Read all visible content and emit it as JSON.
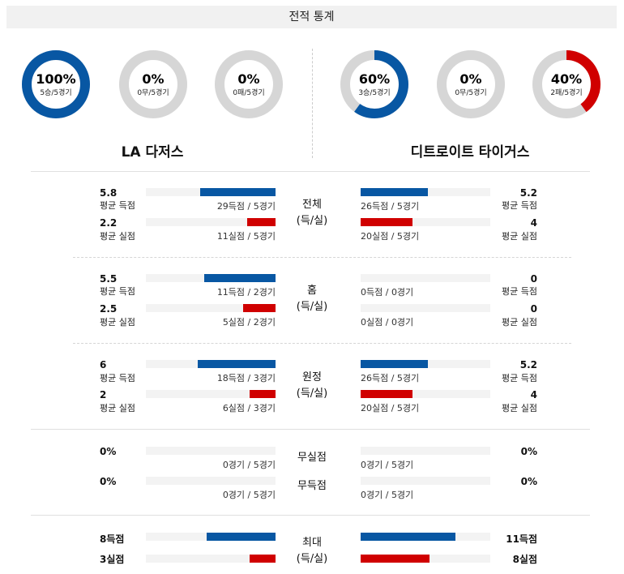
{
  "header": {
    "title": "전적 통계"
  },
  "colors": {
    "blue": "#0857a3",
    "red": "#d00000",
    "track": "#d6d6d6"
  },
  "teams": {
    "home": "LA 다저스",
    "away": "디트로이트 타이거스"
  },
  "donuts": [
    {
      "pct": "100%",
      "sub": "5승/5경기",
      "fraction": 1.0,
      "color": "blue"
    },
    {
      "pct": "0%",
      "sub": "0무/5경기",
      "fraction": 0.0,
      "color": "blue"
    },
    {
      "pct": "0%",
      "sub": "0패/5경기",
      "fraction": 0.0,
      "color": "red"
    },
    {
      "pct": "60%",
      "sub": "3승/5경기",
      "fraction": 0.6,
      "color": "blue"
    },
    {
      "pct": "0%",
      "sub": "0무/5경기",
      "fraction": 0.0,
      "color": "blue"
    },
    {
      "pct": "40%",
      "sub": "2패/5경기",
      "fraction": 0.4,
      "color": "red"
    }
  ],
  "sections": {
    "total": {
      "center": [
        "전체",
        "(득/실)"
      ],
      "rows": [
        {
          "lval": "5.8",
          "llab": "평균 득점",
          "lcap": "29득점 / 5경기",
          "lfrac": 0.58,
          "rval": "5.2",
          "rlab": "평균 득점",
          "rcap": "26득점 / 5경기",
          "rfrac": 0.52,
          "color": "blue"
        },
        {
          "lval": "2.2",
          "llab": "평균 실점",
          "lcap": "11실점 / 5경기",
          "lfrac": 0.22,
          "rval": "4",
          "rlab": "평균 실점",
          "rcap": "20실점 / 5경기",
          "rfrac": 0.4,
          "color": "red"
        }
      ]
    },
    "home": {
      "center": [
        "홈",
        "(득/실)"
      ],
      "rows": [
        {
          "lval": "5.5",
          "llab": "평균 득점",
          "lcap": "11득점 / 2경기",
          "lfrac": 0.55,
          "rval": "0",
          "rlab": "평균 득점",
          "rcap": "0득점 / 0경기",
          "rfrac": 0,
          "color": "blue"
        },
        {
          "lval": "2.5",
          "llab": "평균 실점",
          "lcap": "5실점 / 2경기",
          "lfrac": 0.25,
          "rval": "0",
          "rlab": "평균 실점",
          "rcap": "0실점 / 0경기",
          "rfrac": 0,
          "color": "red"
        }
      ]
    },
    "away": {
      "center": [
        "원정",
        "(득/실)"
      ],
      "rows": [
        {
          "lval": "6",
          "llab": "평균 득점",
          "lcap": "18득점 / 3경기",
          "lfrac": 0.6,
          "rval": "5.2",
          "rlab": "평균 득점",
          "rcap": "26득점 / 5경기",
          "rfrac": 0.52,
          "color": "blue"
        },
        {
          "lval": "2",
          "llab": "평균 실점",
          "lcap": "6실점 / 3경기",
          "lfrac": 0.2,
          "rval": "4",
          "rlab": "평균 실점",
          "rcap": "20실점 / 5경기",
          "rfrac": 0.4,
          "color": "red"
        }
      ]
    },
    "zero": {
      "rows": [
        {
          "center": "무실점",
          "lval": "0%",
          "lcap": "0경기 / 5경기",
          "rval": "0%",
          "rcap": "0경기 / 5경기"
        },
        {
          "center": "무득점",
          "lval": "0%",
          "lcap": "0경기 / 5경기",
          "rval": "0%",
          "rcap": "0경기 / 5경기"
        }
      ]
    },
    "max": {
      "center": [
        "최대",
        "(득/실)"
      ],
      "rows": [
        {
          "lval": "8득점",
          "lfrac": 0.53,
          "rval": "11득점",
          "rfrac": 0.73,
          "color": "blue"
        },
        {
          "lval": "3실점",
          "lfrac": 0.2,
          "rval": "8실점",
          "rfrac": 0.53,
          "color": "red"
        }
      ]
    }
  }
}
